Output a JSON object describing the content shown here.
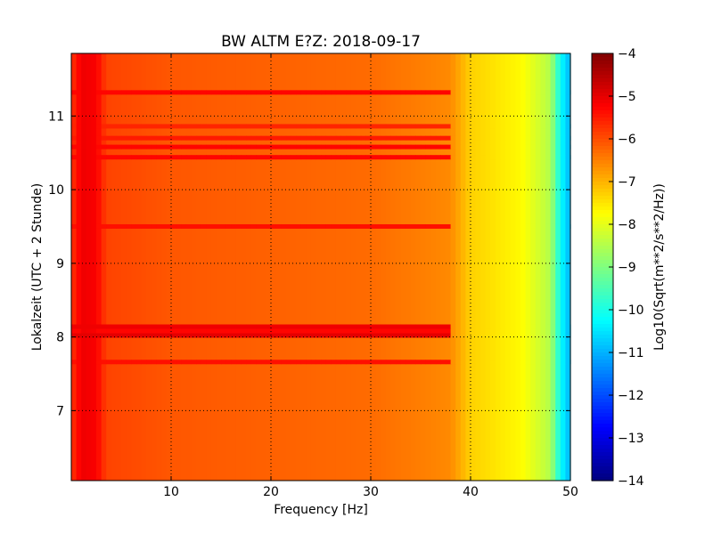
{
  "chart_data": [
    {
      "type": "heatmap",
      "title": "BW ALTM E?Z: 2018-09-17",
      "xlabel": "Frequency [Hz]",
      "ylabel": "Lokalzeit (UTC + 2 Stunde)",
      "xlim": [
        0,
        50
      ],
      "ylim": [
        11.85,
        6.05
      ],
      "y_inverted": true,
      "grid": true,
      "x_ticks": [
        10,
        20,
        30,
        40,
        50
      ],
      "x_tick_labels": [
        "10",
        "20",
        "30",
        "40",
        "50"
      ],
      "y_ticks": [
        7,
        8,
        9,
        10,
        11
      ],
      "y_tick_labels": [
        "7",
        "8",
        "9",
        "10",
        "11"
      ],
      "colormap": "jet",
      "background_level_by_frequency": [
        {
          "hz": 0,
          "value": -5.8
        },
        {
          "hz": 1,
          "value": -5.1
        },
        {
          "hz": 2.5,
          "value": -5.2
        },
        {
          "hz": 3.5,
          "value": -5.9
        },
        {
          "hz": 10,
          "value": -6.1
        },
        {
          "hz": 30,
          "value": -6.3
        },
        {
          "hz": 38,
          "value": -6.6
        },
        {
          "hz": 40,
          "value": -7.3
        },
        {
          "hz": 45,
          "value": -7.7
        },
        {
          "hz": 48,
          "value": -8.5
        },
        {
          "hz": 49,
          "value": -10.2
        },
        {
          "hz": 50,
          "value": -11
        }
      ],
      "strong_bands": [
        {
          "time": 7.66,
          "value": -5.4
        },
        {
          "time": 8.02,
          "value": -5.0
        },
        {
          "time": 8.08,
          "value": -5.3
        },
        {
          "time": 8.14,
          "value": -5.1
        },
        {
          "time": 9.5,
          "value": -5.4
        },
        {
          "time": 10.44,
          "value": -5.3
        },
        {
          "time": 10.58,
          "value": -5.3
        },
        {
          "time": 10.7,
          "value": -5.5
        },
        {
          "time": 10.86,
          "value": -5.6
        },
        {
          "time": 11.32,
          "value": -5.3
        }
      ]
    },
    {
      "type": "colorbar",
      "label": "Log10(Sqrt(m**2/s**2/Hz))",
      "range": [
        -14,
        -4
      ],
      "ticks": [
        -4,
        -5,
        -6,
        -7,
        -8,
        -9,
        -10,
        -11,
        -12,
        -13,
        -14
      ],
      "tick_labels": [
        "−4",
        "−5",
        "−6",
        "−7",
        "−8",
        "−9",
        "−10",
        "−11",
        "−12",
        "−13",
        "−14"
      ]
    }
  ]
}
